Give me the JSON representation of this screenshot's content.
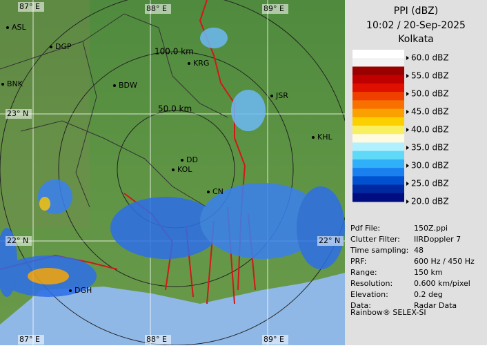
{
  "header": {
    "title": "PPI (dBZ)",
    "time": "10:02 / 20-Sep-2025",
    "site": "Kolkata"
  },
  "legend": {
    "labels": [
      "60.0 dBZ",
      "55.0 dBZ",
      "50.0 dBZ",
      "45.0 dBZ",
      "40.0 dBZ",
      "35.0 dBZ",
      "30.0 dBZ",
      "25.0 dBZ",
      "20.0 dBZ"
    ]
  },
  "info": {
    "rows": [
      [
        "Pdf File:",
        "150Z.ppi"
      ],
      [
        "Clutter Filter:",
        "IIRDoppler 7"
      ],
      [
        "Time sampling:",
        "48"
      ],
      [
        "PRF:",
        "600 Hz / 450 Hz"
      ],
      [
        "Range:",
        "150 km"
      ],
      [
        "Resolution:",
        "0.600 km/pixel"
      ],
      [
        "Elevation:",
        "0.2 deg"
      ],
      [
        "Data:",
        "Radar Data"
      ]
    ],
    "footer": "Rainbow® SELEX-SI"
  },
  "map": {
    "grid_labels": [
      "87° E",
      "88° E",
      "89° E",
      "23° N",
      "22° N",
      "87° E",
      "88° E",
      "89° E",
      "22° N"
    ],
    "range_labels": [
      "50.0 km",
      "100.0 km"
    ],
    "places": [
      "ASL",
      "DGP",
      "BNK",
      "BDW",
      "KRG",
      "JSR",
      "KHL",
      "DD",
      "KOL",
      "CN",
      "DGH"
    ]
  }
}
